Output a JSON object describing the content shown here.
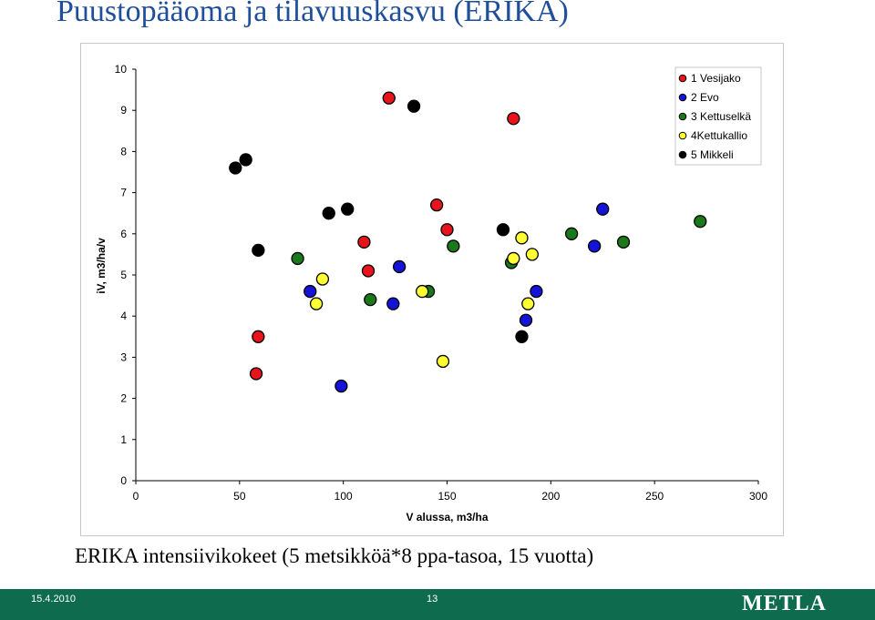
{
  "slide": {
    "title": "Puustopääoma ja tilavuuskasvu (ERIKA)",
    "caption": "ERIKA intensiivikokeet (5 metsikköä*8 ppa-tasoa, 15 vuotta)",
    "footer": {
      "date": "15.4.2010",
      "page": "13",
      "logo": "METLA"
    }
  },
  "colors": {
    "title": "#1f4e9a",
    "footer": "#0f6b4e"
  },
  "chart_data": {
    "type": "scatter",
    "xlabel": "V alussa, m3/ha",
    "ylabel": "iV, m3/ha/v",
    "xlim": [
      0,
      300
    ],
    "ylim": [
      0,
      10
    ],
    "xticks": [
      0,
      50,
      100,
      150,
      200,
      250,
      300
    ],
    "yticks": [
      0,
      1,
      2,
      3,
      4,
      5,
      6,
      7,
      8,
      9,
      10
    ],
    "grid": false,
    "legend_position": "top-right",
    "series": [
      {
        "name": "1 Vesijako",
        "color": "#e8141b",
        "x": [
          58,
          59,
          110,
          112,
          122,
          145,
          150,
          182
        ],
        "y": [
          2.6,
          3.5,
          5.8,
          5.1,
          9.3,
          6.7,
          6.1,
          8.8
        ]
      },
      {
        "name": "2 Evo",
        "color": "#1414d8",
        "x": [
          84,
          99,
          124,
          127,
          188,
          193,
          221,
          225
        ],
        "y": [
          4.6,
          2.3,
          4.3,
          5.2,
          3.9,
          4.6,
          5.7,
          6.6
        ]
      },
      {
        "name": "3 Kettuselkä",
        "color": "#1a7a1a",
        "x": [
          78,
          113,
          141,
          153,
          181,
          210,
          235,
          272
        ],
        "y": [
          5.4,
          4.4,
          4.6,
          5.7,
          5.3,
          6.0,
          5.8,
          6.3
        ]
      },
      {
        "name": "4Kettukallio",
        "color": "#ffff33",
        "x": [
          87,
          90,
          138,
          148,
          182,
          186,
          189,
          191
        ],
        "y": [
          4.3,
          4.9,
          4.6,
          2.9,
          5.4,
          5.9,
          4.3,
          5.5
        ]
      },
      {
        "name": "5 Mikkeli",
        "color": "#000000",
        "x": [
          48,
          53,
          59,
          93,
          102,
          134,
          177,
          186
        ],
        "y": [
          7.6,
          7.8,
          5.6,
          6.5,
          6.6,
          9.1,
          6.1,
          3.5
        ]
      }
    ]
  }
}
